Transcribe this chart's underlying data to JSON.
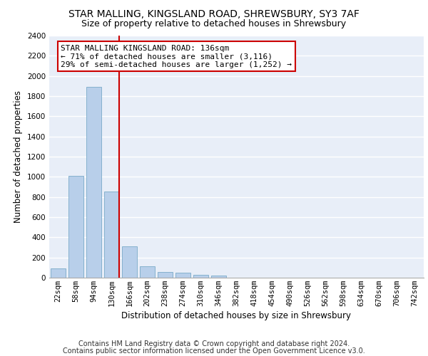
{
  "title": "STAR MALLING, KINGSLAND ROAD, SHREWSBURY, SY3 7AF",
  "subtitle": "Size of property relative to detached houses in Shrewsbury",
  "xlabel": "Distribution of detached houses by size in Shrewsbury",
  "ylabel": "Number of detached properties",
  "bar_labels": [
    "22sqm",
    "58sqm",
    "94sqm",
    "130sqm",
    "166sqm",
    "202sqm",
    "238sqm",
    "274sqm",
    "310sqm",
    "346sqm",
    "382sqm",
    "418sqm",
    "454sqm",
    "490sqm",
    "526sqm",
    "562sqm",
    "598sqm",
    "634sqm",
    "670sqm",
    "706sqm",
    "742sqm"
  ],
  "bar_values": [
    95,
    1010,
    1890,
    855,
    310,
    115,
    58,
    48,
    30,
    22,
    0,
    0,
    0,
    0,
    0,
    0,
    0,
    0,
    0,
    0,
    0
  ],
  "bar_color": "#b8cfea",
  "bar_edgecolor": "#7aaac8",
  "vline_bar_idx": 3,
  "annotation_line1": "STAR MALLING KINGSLAND ROAD: 136sqm",
  "annotation_line2": "← 71% of detached houses are smaller (3,116)",
  "annotation_line3": "29% of semi-detached houses are larger (1,252) →",
  "vline_color": "#cc0000",
  "ylim": [
    0,
    2400
  ],
  "yticks": [
    0,
    200,
    400,
    600,
    800,
    1000,
    1200,
    1400,
    1600,
    1800,
    2000,
    2200,
    2400
  ],
  "footer_line1": "Contains HM Land Registry data © Crown copyright and database right 2024.",
  "footer_line2": "Contains public sector information licensed under the Open Government Licence v3.0.",
  "bg_color": "#e8eef8",
  "grid_color": "#ffffff",
  "title_fontsize": 10,
  "subtitle_fontsize": 9,
  "axis_label_fontsize": 8.5,
  "tick_fontsize": 7.5,
  "annotation_fontsize": 8,
  "footer_fontsize": 7
}
